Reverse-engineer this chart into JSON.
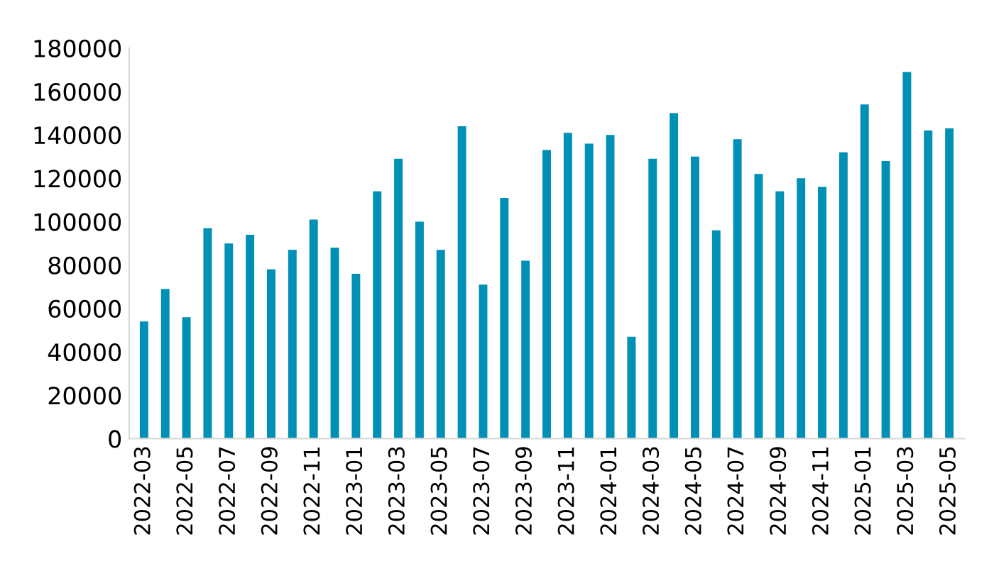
{
  "chart_data": {
    "type": "bar",
    "categories": [
      "2022-03",
      null,
      "2022-05",
      null,
      "2022-07",
      null,
      "2022-09",
      null,
      "2022-11",
      null,
      "2023-01",
      null,
      "2023-03",
      null,
      "2023-05",
      null,
      "2023-07",
      null,
      "2023-09",
      null,
      "2023-11",
      null,
      "2024-01",
      null,
      "2024-03",
      null,
      "2024-05",
      null,
      "2024-07",
      null,
      "2024-09",
      null,
      "2024-11",
      null,
      "2025-01",
      null,
      "2025-03",
      null,
      "2025-05"
    ],
    "values": [
      54000,
      69000,
      56000,
      97000,
      90000,
      94000,
      78000,
      87000,
      101000,
      88000,
      76000,
      114000,
      129000,
      100000,
      87000,
      144000,
      71000,
      111000,
      82000,
      133000,
      141000,
      136000,
      140000,
      47000,
      129000,
      150000,
      130000,
      96000,
      138000,
      122000,
      114000,
      120000,
      116000,
      132000,
      154000,
      128000,
      169000,
      142000,
      143000
    ],
    "color": "#008fb5",
    "ylim": [
      0,
      180000
    ],
    "yticks": [
      0,
      20000,
      40000,
      60000,
      80000,
      100000,
      120000,
      140000,
      160000,
      180000
    ],
    "grid": false,
    "legend": false
  }
}
